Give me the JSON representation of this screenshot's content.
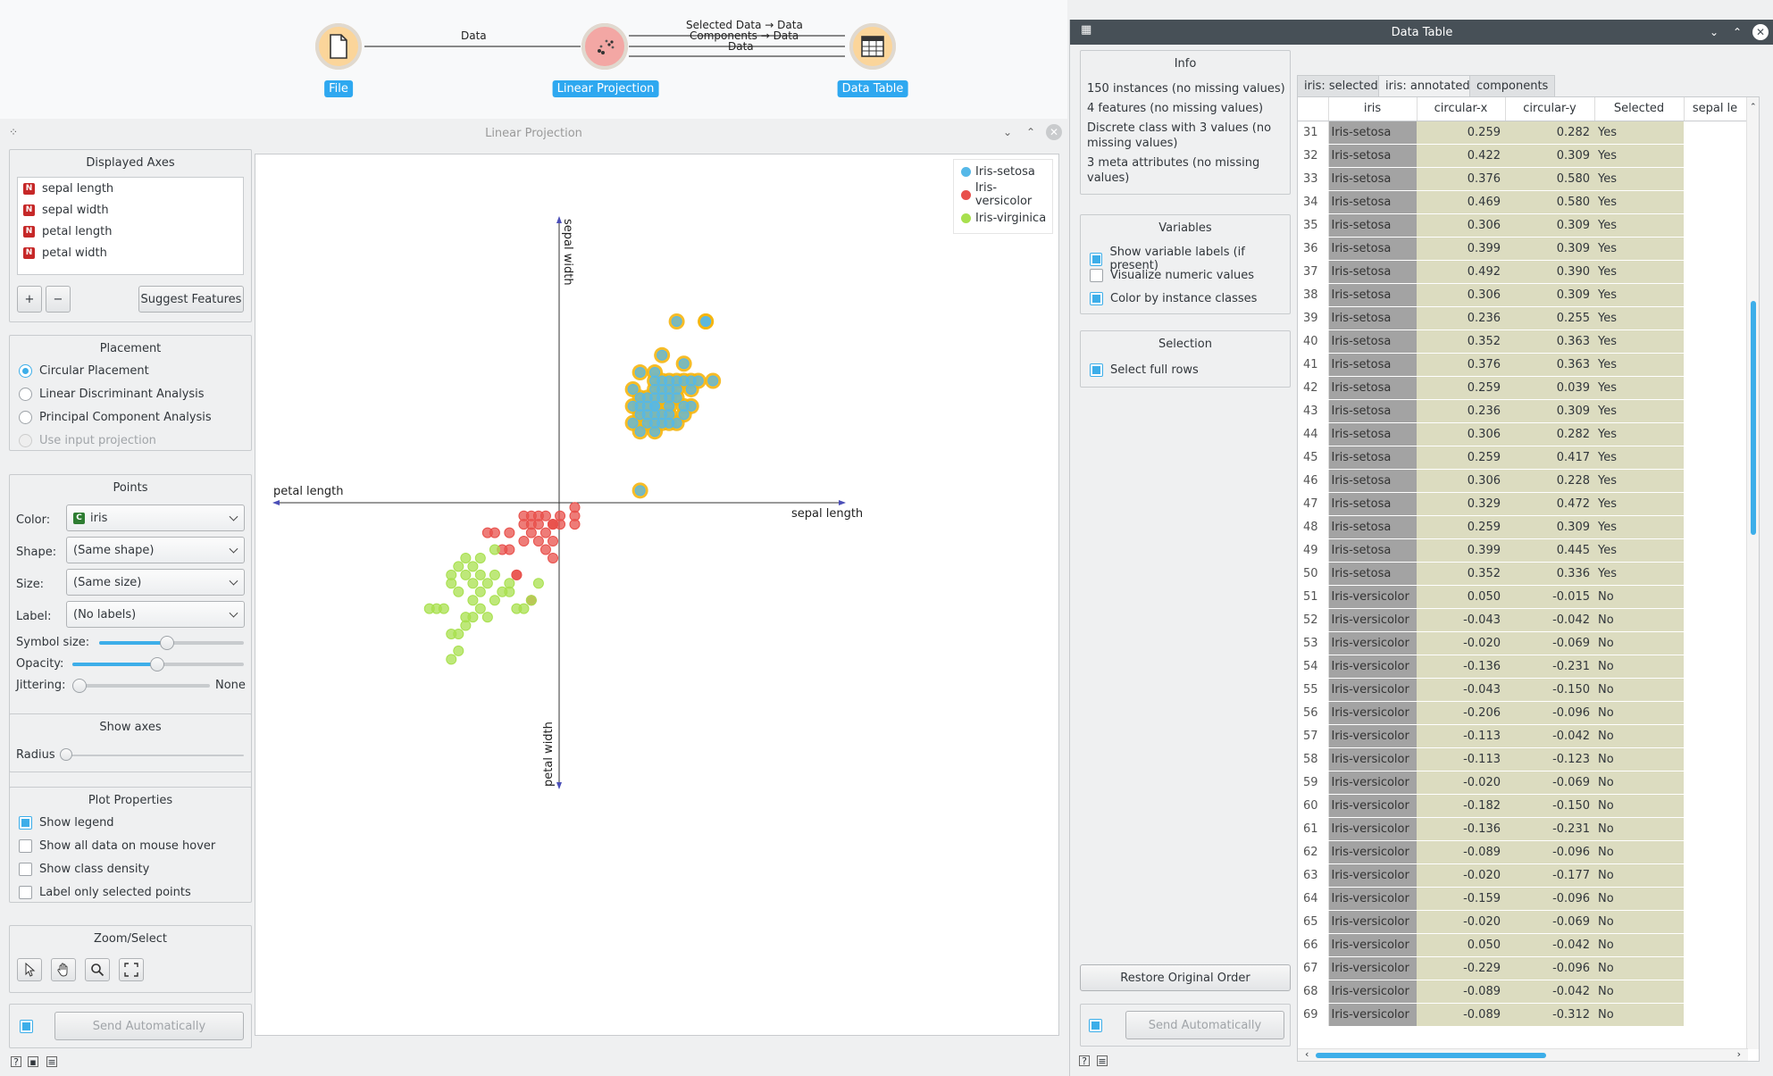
{
  "workflow": {
    "nodes": [
      {
        "label": "File",
        "icon": "file-icon"
      },
      {
        "label": "Linear Projection",
        "icon": "linear-projection-icon"
      },
      {
        "label": "Data Table",
        "icon": "table-icon"
      }
    ],
    "links": {
      "file_to_lp": "Data",
      "lp_to_table_1": "Selected Data → Data",
      "lp_to_table_2": "Components → Data",
      "lp_to_table_3": "Data"
    }
  },
  "lp_window": {
    "title": "Linear Projection",
    "displayed_axes": {
      "title": "Displayed Axes",
      "items": [
        "sepal length",
        "sepal width",
        "petal length",
        "petal width"
      ],
      "add_label": "+",
      "remove_label": "−",
      "suggest_label": "Suggest Features"
    },
    "placement": {
      "title": "Placement",
      "options": [
        "Circular Placement",
        "Linear Discriminant Analysis",
        "Principal Component Analysis",
        "Use input projection"
      ],
      "selected": "Circular Placement"
    },
    "points": {
      "title": "Points",
      "color_label": "Color:",
      "color_value": "iris",
      "shape_label": "Shape:",
      "shape_value": "(Same shape)",
      "size_label": "Size:",
      "size_value": "(Same size)",
      "label_label": "Label:",
      "label_value": "(No labels)",
      "symbol_size_label": "Symbol size:",
      "opacity_label": "Opacity:",
      "jittering_label": "Jittering:",
      "jittering_value": "None"
    },
    "show_axes": {
      "title": "Show axes",
      "radius_label": "Radius"
    },
    "plot_properties": {
      "title": "Plot Properties",
      "options": [
        {
          "label": "Show legend",
          "checked": true
        },
        {
          "label": "Show all data on mouse hover",
          "checked": false
        },
        {
          "label": "Show class density",
          "checked": false
        },
        {
          "label": "Label only selected points",
          "checked": false
        }
      ]
    },
    "zoom_select": {
      "title": "Zoom/Select",
      "tools": [
        "pointer-icon",
        "hand-icon",
        "magnifier-icon",
        "fit-icon"
      ]
    },
    "send_label": "Send Automatically"
  },
  "chart_data": {
    "type": "scatter",
    "title": "",
    "axis_labels": {
      "sepal_length": "sepal length",
      "sepal_width": "sepal width",
      "petal_length": "petal length",
      "petal_width": "petal width"
    },
    "legend": {
      "placement": "top-right",
      "entries": [
        {
          "name": "Iris-setosa",
          "color": "#55b8e8"
        },
        {
          "name": "Iris-versicolor",
          "color": "#e8504b"
        },
        {
          "name": "Iris-virginica",
          "color": "#a8e04e"
        }
      ]
    },
    "series": [
      {
        "name": "Iris-setosa",
        "selected": true,
        "points": [
          [
            0.259,
            0.282
          ],
          [
            0.422,
            0.309
          ],
          [
            0.376,
            0.58
          ],
          [
            0.469,
            0.58
          ],
          [
            0.306,
            0.309
          ],
          [
            0.399,
            0.309
          ],
          [
            0.492,
            0.39
          ],
          [
            0.306,
            0.309
          ],
          [
            0.236,
            0.255
          ],
          [
            0.352,
            0.363
          ],
          [
            0.376,
            0.363
          ],
          [
            0.259,
            0.039
          ],
          [
            0.236,
            0.309
          ],
          [
            0.306,
            0.282
          ],
          [
            0.259,
            0.417
          ],
          [
            0.306,
            0.228
          ],
          [
            0.329,
            0.472
          ],
          [
            0.259,
            0.309
          ],
          [
            0.399,
            0.445
          ],
          [
            0.352,
            0.336
          ],
          [
            0.282,
            0.255
          ],
          [
            0.306,
            0.336
          ],
          [
            0.329,
            0.39
          ],
          [
            0.352,
            0.39
          ],
          [
            0.376,
            0.39
          ],
          [
            0.399,
            0.39
          ],
          [
            0.422,
            0.39
          ],
          [
            0.445,
            0.39
          ],
          [
            0.282,
            0.336
          ],
          [
            0.329,
            0.255
          ],
          [
            0.306,
            0.39
          ],
          [
            0.236,
            0.363
          ],
          [
            0.352,
            0.282
          ],
          [
            0.259,
            0.228
          ],
          [
            0.376,
            0.255
          ],
          [
            0.399,
            0.282
          ],
          [
            0.306,
            0.363
          ],
          [
            0.329,
            0.336
          ],
          [
            0.352,
            0.309
          ],
          [
            0.469,
            0.58
          ],
          [
            0.422,
            0.363
          ],
          [
            0.282,
            0.309
          ],
          [
            0.306,
            0.255
          ],
          [
            0.329,
            0.282
          ],
          [
            0.352,
            0.255
          ],
          [
            0.259,
            0.336
          ],
          [
            0.376,
            0.336
          ],
          [
            0.306,
            0.417
          ],
          [
            0.329,
            0.363
          ],
          [
            0.282,
            0.282
          ]
        ]
      },
      {
        "name": "Iris-versicolor",
        "selected": false,
        "points": [
          [
            0.05,
            -0.015
          ],
          [
            -0.043,
            -0.042
          ],
          [
            -0.02,
            -0.069
          ],
          [
            -0.136,
            -0.231
          ],
          [
            -0.043,
            -0.15
          ],
          [
            -0.206,
            -0.096
          ],
          [
            -0.113,
            -0.042
          ],
          [
            -0.113,
            -0.123
          ],
          [
            -0.02,
            -0.069
          ],
          [
            -0.182,
            -0.15
          ],
          [
            -0.136,
            -0.231
          ],
          [
            -0.089,
            -0.096
          ],
          [
            -0.02,
            -0.177
          ],
          [
            -0.159,
            -0.096
          ],
          [
            -0.02,
            -0.069
          ],
          [
            0.05,
            -0.042
          ],
          [
            -0.229,
            -0.096
          ],
          [
            -0.089,
            -0.042
          ],
          [
            -0.089,
            -0.312
          ],
          [
            0.003,
            -0.069
          ],
          [
            -0.066,
            -0.069
          ],
          [
            -0.066,
            -0.123
          ],
          [
            -0.043,
            -0.096
          ],
          [
            -0.113,
            -0.069
          ],
          [
            0.003,
            -0.042
          ],
          [
            0.05,
            -0.069
          ],
          [
            -0.066,
            -0.042
          ],
          [
            -0.02,
            -0.123
          ],
          [
            -0.159,
            -0.15
          ],
          [
            -0.089,
            -0.069
          ]
        ]
      },
      {
        "name": "Iris-virginica",
        "selected": false,
        "points": [
          [
            -0.252,
            -0.177
          ],
          [
            -0.299,
            -0.231
          ],
          [
            -0.229,
            -0.258
          ],
          [
            -0.345,
            -0.231
          ],
          [
            -0.322,
            -0.285
          ],
          [
            -0.369,
            -0.339
          ],
          [
            -0.299,
            -0.393
          ],
          [
            -0.276,
            -0.366
          ],
          [
            -0.206,
            -0.312
          ],
          [
            -0.182,
            -0.285
          ],
          [
            -0.159,
            -0.285
          ],
          [
            -0.252,
            -0.285
          ],
          [
            -0.276,
            -0.312
          ],
          [
            -0.299,
            -0.366
          ],
          [
            -0.345,
            -0.42
          ],
          [
            -0.322,
            -0.474
          ],
          [
            -0.392,
            -0.339
          ],
          [
            -0.415,
            -0.339
          ],
          [
            -0.206,
            -0.15
          ],
          [
            -0.159,
            -0.258
          ],
          [
            -0.229,
            -0.366
          ],
          [
            -0.276,
            -0.258
          ],
          [
            -0.252,
            -0.231
          ],
          [
            -0.322,
            -0.42
          ],
          [
            -0.345,
            -0.501
          ],
          [
            -0.206,
            -0.231
          ],
          [
            -0.136,
            -0.339
          ],
          [
            -0.113,
            -0.339
          ],
          [
            -0.089,
            -0.312
          ],
          [
            -0.066,
            -0.258
          ],
          [
            -0.299,
            -0.177
          ],
          [
            -0.322,
            -0.204
          ],
          [
            -0.252,
            -0.339
          ],
          [
            -0.276,
            -0.204
          ],
          [
            -0.345,
            -0.258
          ]
        ]
      }
    ]
  },
  "dt_window": {
    "title": "Data Table",
    "info": {
      "title": "Info",
      "lines": [
        "150 instances (no missing values)",
        "4 features (no missing values)",
        "Discrete class with 3 values (no missing values)",
        "3 meta attributes (no missing values)"
      ]
    },
    "variables": {
      "title": "Variables",
      "options": [
        {
          "label": "Show variable labels (if present)",
          "checked": true
        },
        {
          "label": "Visualize numeric values",
          "checked": false
        },
        {
          "label": "Color by instance classes",
          "checked": true
        }
      ]
    },
    "selection": {
      "title": "Selection",
      "options": [
        {
          "label": "Select full rows",
          "checked": true
        }
      ]
    },
    "restore_label": "Restore Original Order",
    "send_label": "Send Automatically",
    "tabs": [
      "iris: selected",
      "iris: annotated",
      "components"
    ],
    "active_tab": "iris: annotated",
    "columns": [
      "iris",
      "circular-x",
      "circular-y",
      "Selected",
      "sepal le"
    ],
    "rows": [
      [
        "31",
        "Iris-setosa",
        "0.259",
        "0.282",
        "Yes"
      ],
      [
        "32",
        "Iris-setosa",
        "0.422",
        "0.309",
        "Yes"
      ],
      [
        "33",
        "Iris-setosa",
        "0.376",
        "0.580",
        "Yes"
      ],
      [
        "34",
        "Iris-setosa",
        "0.469",
        "0.580",
        "Yes"
      ],
      [
        "35",
        "Iris-setosa",
        "0.306",
        "0.309",
        "Yes"
      ],
      [
        "36",
        "Iris-setosa",
        "0.399",
        "0.309",
        "Yes"
      ],
      [
        "37",
        "Iris-setosa",
        "0.492",
        "0.390",
        "Yes"
      ],
      [
        "38",
        "Iris-setosa",
        "0.306",
        "0.309",
        "Yes"
      ],
      [
        "39",
        "Iris-setosa",
        "0.236",
        "0.255",
        "Yes"
      ],
      [
        "40",
        "Iris-setosa",
        "0.352",
        "0.363",
        "Yes"
      ],
      [
        "41",
        "Iris-setosa",
        "0.376",
        "0.363",
        "Yes"
      ],
      [
        "42",
        "Iris-setosa",
        "0.259",
        "0.039",
        "Yes"
      ],
      [
        "43",
        "Iris-setosa",
        "0.236",
        "0.309",
        "Yes"
      ],
      [
        "44",
        "Iris-setosa",
        "0.306",
        "0.282",
        "Yes"
      ],
      [
        "45",
        "Iris-setosa",
        "0.259",
        "0.417",
        "Yes"
      ],
      [
        "46",
        "Iris-setosa",
        "0.306",
        "0.228",
        "Yes"
      ],
      [
        "47",
        "Iris-setosa",
        "0.329",
        "0.472",
        "Yes"
      ],
      [
        "48",
        "Iris-setosa",
        "0.259",
        "0.309",
        "Yes"
      ],
      [
        "49",
        "Iris-setosa",
        "0.399",
        "0.445",
        "Yes"
      ],
      [
        "50",
        "Iris-setosa",
        "0.352",
        "0.336",
        "Yes"
      ],
      [
        "51",
        "Iris-versicolor",
        "0.050",
        "-0.015",
        "No"
      ],
      [
        "52",
        "Iris-versicolor",
        "-0.043",
        "-0.042",
        "No"
      ],
      [
        "53",
        "Iris-versicolor",
        "-0.020",
        "-0.069",
        "No"
      ],
      [
        "54",
        "Iris-versicolor",
        "-0.136",
        "-0.231",
        "No"
      ],
      [
        "55",
        "Iris-versicolor",
        "-0.043",
        "-0.150",
        "No"
      ],
      [
        "56",
        "Iris-versicolor",
        "-0.206",
        "-0.096",
        "No"
      ],
      [
        "57",
        "Iris-versicolor",
        "-0.113",
        "-0.042",
        "No"
      ],
      [
        "58",
        "Iris-versicolor",
        "-0.113",
        "-0.123",
        "No"
      ],
      [
        "59",
        "Iris-versicolor",
        "-0.020",
        "-0.069",
        "No"
      ],
      [
        "60",
        "Iris-versicolor",
        "-0.182",
        "-0.150",
        "No"
      ],
      [
        "61",
        "Iris-versicolor",
        "-0.136",
        "-0.231",
        "No"
      ],
      [
        "62",
        "Iris-versicolor",
        "-0.089",
        "-0.096",
        "No"
      ],
      [
        "63",
        "Iris-versicolor",
        "-0.020",
        "-0.177",
        "No"
      ],
      [
        "64",
        "Iris-versicolor",
        "-0.159",
        "-0.096",
        "No"
      ],
      [
        "65",
        "Iris-versicolor",
        "-0.020",
        "-0.069",
        "No"
      ],
      [
        "66",
        "Iris-versicolor",
        "0.050",
        "-0.042",
        "No"
      ],
      [
        "67",
        "Iris-versicolor",
        "-0.229",
        "-0.096",
        "No"
      ],
      [
        "68",
        "Iris-versicolor",
        "-0.089",
        "-0.042",
        "No"
      ],
      [
        "69",
        "Iris-versicolor",
        "-0.089",
        "-0.312",
        "No"
      ]
    ]
  },
  "colors": {
    "accent": "#3daee9",
    "setosa": "#55b8e8",
    "versicolor": "#e8504b",
    "virginica": "#a8e04e",
    "selected_ring": "#f5b50f",
    "class_cell": "#a3a3a3",
    "value_cell": "#dcdcc0"
  }
}
